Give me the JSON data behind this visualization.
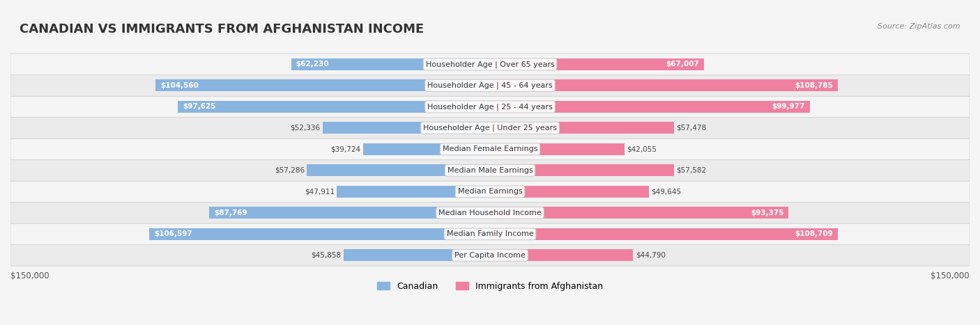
{
  "title": "CANADIAN VS IMMIGRANTS FROM AFGHANISTAN INCOME",
  "source": "Source: ZipAtlas.com",
  "categories": [
    "Per Capita Income",
    "Median Family Income",
    "Median Household Income",
    "Median Earnings",
    "Median Male Earnings",
    "Median Female Earnings",
    "Householder Age | Under 25 years",
    "Householder Age | 25 - 44 years",
    "Householder Age | 45 - 64 years",
    "Householder Age | Over 65 years"
  ],
  "canadian_values": [
    45858,
    106597,
    87769,
    47911,
    57286,
    39724,
    52336,
    97625,
    104560,
    62230
  ],
  "afghan_values": [
    44790,
    108709,
    93375,
    49645,
    57582,
    42055,
    57478,
    99977,
    108785,
    67007
  ],
  "canadian_color": "#8ab4e0",
  "afghan_color": "#f080a0",
  "canadian_color_dark": "#5b8ec9",
  "afghan_color_dark": "#e85580",
  "bar_height": 0.55,
  "max_value": 150000,
  "background_color": "#f5f5f5",
  "row_bg_light": "#fafafa",
  "row_bg_dark": "#f0f0f0",
  "legend_canadian": "Canadian",
  "legend_afghan": "Immigrants from Afghanistan",
  "xlabel_left": "$150,000",
  "xlabel_right": "$150,000"
}
